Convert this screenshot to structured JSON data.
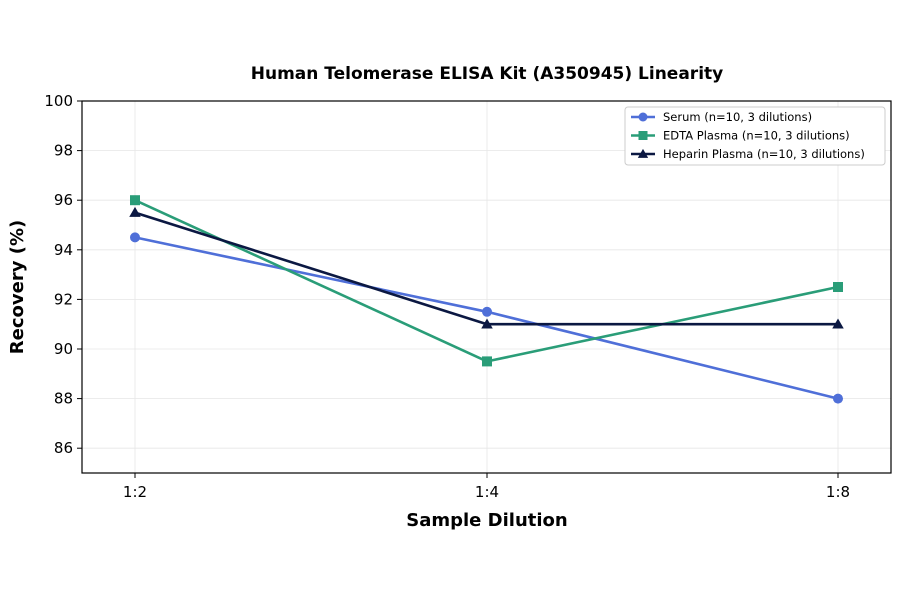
{
  "chart_data": {
    "type": "line",
    "title": "Human Telomerase ELISA Kit (A350945) Linearity",
    "xlabel": "Sample Dilution",
    "ylabel": "Recovery (%)",
    "categories": [
      "1:2",
      "1:4",
      "1:8"
    ],
    "ylim": [
      85,
      100
    ],
    "yticks": [
      86,
      88,
      90,
      92,
      94,
      96,
      98,
      100
    ],
    "grid": true,
    "legend_position": "top-right",
    "series": [
      {
        "name": "Serum (n=10, 3 dilutions)",
        "values": [
          94.5,
          91.5,
          88.0
        ],
        "color": "#4f6fd8",
        "marker": "circle"
      },
      {
        "name": "EDTA Plasma (n=10, 3 dilutions)",
        "values": [
          96.0,
          89.5,
          92.5
        ],
        "color": "#2a9d78",
        "marker": "square"
      },
      {
        "name": "Heparin Plasma (n=10, 3 dilutions)",
        "values": [
          95.5,
          91.0,
          91.0
        ],
        "color": "#0b1842",
        "marker": "triangle"
      }
    ]
  }
}
